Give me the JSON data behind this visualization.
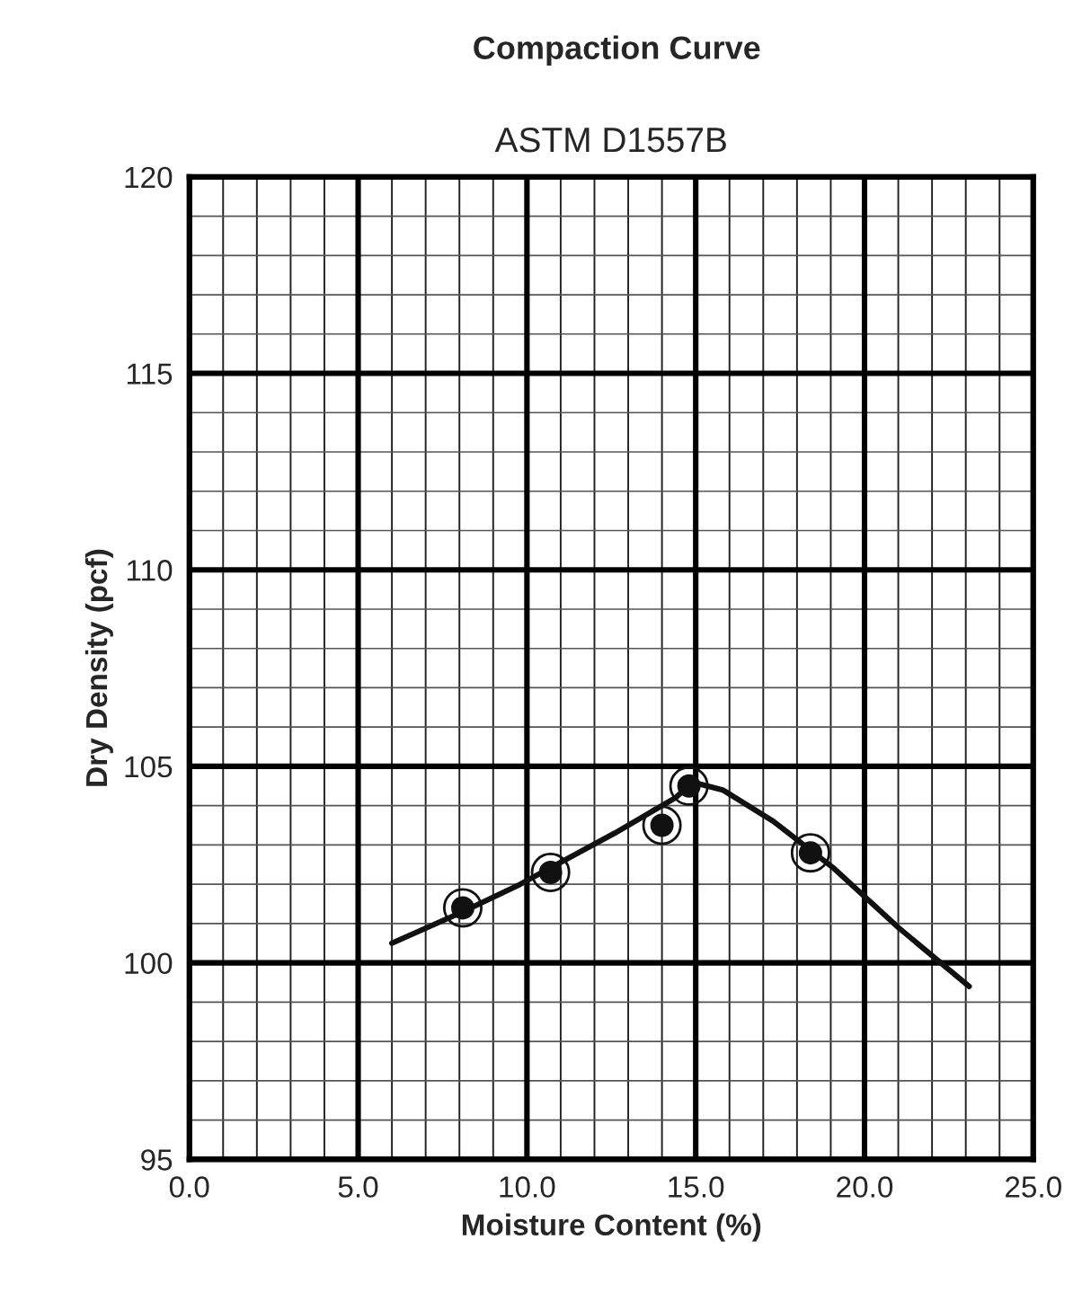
{
  "chart_data": {
    "type": "scatter",
    "title": "Compaction Curve",
    "subtitle": "ASTM D1557B",
    "xlabel": "Moisture Content (%)",
    "ylabel": "Dry Density (pcf)",
    "xlim": [
      0,
      25
    ],
    "ylim": [
      95,
      120
    ],
    "xticks": [
      {
        "value": 0,
        "label": "0.0"
      },
      {
        "value": 5,
        "label": "5.0"
      },
      {
        "value": 10,
        "label": "10.0"
      },
      {
        "value": 15,
        "label": "15.0"
      },
      {
        "value": 20,
        "label": "20.0"
      },
      {
        "value": 25,
        "label": "25.0"
      }
    ],
    "yticks": [
      95,
      100,
      105,
      110,
      115,
      120
    ],
    "grid": true,
    "series": [
      {
        "marker": "circle",
        "color": "#111111",
        "x": [
          8.1,
          10.7,
          14.0,
          14.8,
          18.4
        ],
        "values": [
          101.4,
          102.3,
          103.5,
          104.5,
          102.8
        ]
      },
      {
        "type": "line",
        "color": "#111111",
        "x": [
          6.0,
          8.1,
          9.8,
          12.6,
          14.4,
          14.9,
          15.8,
          17.3,
          19.1,
          21.0,
          23.1
        ],
        "values": [
          100.5,
          101.3,
          102.0,
          103.3,
          104.2,
          104.6,
          104.4,
          103.6,
          102.4,
          100.9,
          99.4
        ]
      }
    ]
  }
}
